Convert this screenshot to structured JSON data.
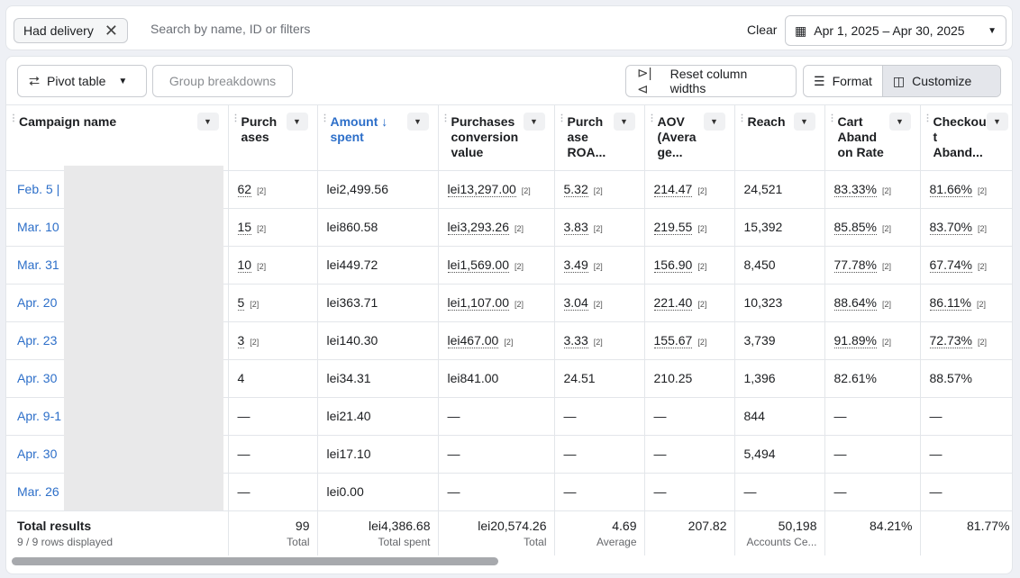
{
  "filter": {
    "chip_label": "Had delivery",
    "search_placeholder": "Search by name, ID or filters",
    "clear_label": "Clear",
    "date_range": "Apr 1, 2025 – Apr 30, 2025"
  },
  "toolbar": {
    "pivot_label": "Pivot table",
    "group_label": "Group breakdowns",
    "reset_label": "Reset column widths",
    "format_label": "Format",
    "customize_label": "Customize"
  },
  "columns": [
    {
      "label": "Campaign name"
    },
    {
      "label": "Purch ases"
    },
    {
      "label": "Amount ↓ spent"
    },
    {
      "label": "Purchases conversion value"
    },
    {
      "label": "Purch ase ROA..."
    },
    {
      "label": "AOV (Avera ge..."
    },
    {
      "label": "Reach"
    },
    {
      "label": "Cart Aband on Rate"
    },
    {
      "label": "Checkou t Aband..."
    }
  ],
  "rows": [
    {
      "name": "Feb. 5 |",
      "purchases": "62",
      "spent": "lei2,499.56",
      "conv_value": "lei13,297.00",
      "roas": "5.32",
      "aov": "214.47",
      "reach": "24,521",
      "cart": "83.33%",
      "checkout": "81.66%",
      "ref": "[2]"
    },
    {
      "name": "Mar. 10",
      "purchases": "15",
      "spent": "lei860.58",
      "conv_value": "lei3,293.26",
      "roas": "3.83",
      "aov": "219.55",
      "reach": "15,392",
      "cart": "85.85%",
      "checkout": "83.70%",
      "ref": "[2]"
    },
    {
      "name": "Mar. 31",
      "purchases": "10",
      "spent": "lei449.72",
      "conv_value": "lei1,569.00",
      "roas": "3.49",
      "aov": "156.90",
      "reach": "8,450",
      "cart": "77.78%",
      "checkout": "67.74%",
      "ref": "[2]"
    },
    {
      "name": "Apr. 20",
      "purchases": "5",
      "spent": "lei363.71",
      "conv_value": "lei1,107.00",
      "roas": "3.04",
      "aov": "221.40",
      "reach": "10,323",
      "cart": "88.64%",
      "checkout": "86.11%",
      "ref": "[2]"
    },
    {
      "name": "Apr. 23",
      "purchases": "3",
      "spent": "lei140.30",
      "conv_value": "lei467.00",
      "roas": "3.33",
      "aov": "155.67",
      "reach": "3,739",
      "cart": "91.89%",
      "checkout": "72.73%",
      "ref": "[2]"
    },
    {
      "name": "Apr. 30",
      "purchases": "4",
      "spent": "lei34.31",
      "conv_value": "lei841.00",
      "roas": "24.51",
      "aov": "210.25",
      "reach": "1,396",
      "cart": "82.61%",
      "checkout": "88.57%",
      "ref": ""
    },
    {
      "name": "Apr. 9-1",
      "purchases": "—",
      "spent": "lei21.40",
      "conv_value": "—",
      "roas": "—",
      "aov": "—",
      "reach": "844",
      "cart": "—",
      "checkout": "—",
      "ref": ""
    },
    {
      "name": "Apr. 30",
      "purchases": "—",
      "spent": "lei17.10",
      "conv_value": "—",
      "roas": "—",
      "aov": "—",
      "reach": "5,494",
      "cart": "—",
      "checkout": "—",
      "ref": ""
    },
    {
      "name": "Mar. 26",
      "purchases": "—",
      "spent": "lei0.00",
      "conv_value": "—",
      "roas": "—",
      "aov": "—",
      "reach": "—",
      "cart": "—",
      "checkout": "—",
      "ref": ""
    }
  ],
  "totals": {
    "title": "Total results",
    "subtitle": "9 / 9 rows displayed",
    "purchases": "99",
    "purchases_label": "Total",
    "spent": "lei4,386.68",
    "spent_label": "Total spent",
    "conv_value": "lei20,574.26",
    "conv_label": "Total",
    "roas": "4.69",
    "roas_label": "Average",
    "aov": "207.82",
    "reach": "50,198",
    "reach_label": "Accounts Ce...",
    "cart": "84.21%",
    "checkout": "81.77%"
  },
  "colors": {
    "link": "#2d6fc9",
    "mask": "#e9e9ea"
  }
}
